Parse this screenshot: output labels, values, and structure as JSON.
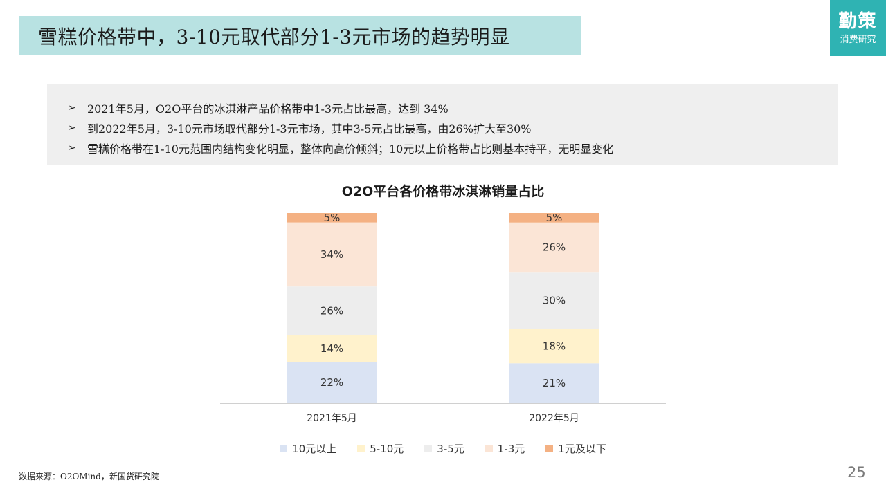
{
  "header": {
    "title": "雪糕价格带中，3-10元取代部分1-3元市场的趋势明显"
  },
  "brand": {
    "name": "勤策",
    "subtitle": "消费研究",
    "color": "#2fb3b3"
  },
  "bullets": {
    "mark": "➢",
    "items": [
      "2021年5月，O2O平台的冰淇淋产品价格带中1-3元占比最高，达到 34%",
      "到2022年5月，3-10元市场取代部分1-3元市场，其中3-5元占比最高，由26%扩大至30%",
      "雪糕价格带在1-10元范围内结构变化明显，整体向高价倾斜；10元以上价格带占比则基本持平，无明显变化"
    ]
  },
  "chart_data": {
    "type": "bar",
    "stacked": true,
    "title": "O2O平台各价格带冰淇淋销量占比",
    "categories": [
      "2021年5月",
      "2022年5月"
    ],
    "series": [
      {
        "name": "10元以上",
        "values": [
          22,
          21
        ],
        "labels": [
          "22%",
          "21%"
        ],
        "color": "#dae3f3"
      },
      {
        "name": "5-10元",
        "values": [
          14,
          18
        ],
        "labels": [
          "14%",
          "18%"
        ],
        "color": "#fff2cc"
      },
      {
        "name": "3-5元",
        "values": [
          26,
          30
        ],
        "labels": [
          "26%",
          "30%"
        ],
        "color": "#ededed"
      },
      {
        "name": "1-3元",
        "values": [
          34,
          26
        ],
        "labels": [
          "34%",
          "26%"
        ],
        "color": "#fbe5d6"
      },
      {
        "name": "1元及以下",
        "values": [
          5,
          5
        ],
        "labels": [
          "5%",
          "5%"
        ],
        "color": "#f4b183"
      }
    ],
    "legend_position": "bottom",
    "grid": false
  },
  "footer": {
    "source": "数据来源：O2OMind，新国货研究院",
    "page_number": "25"
  }
}
